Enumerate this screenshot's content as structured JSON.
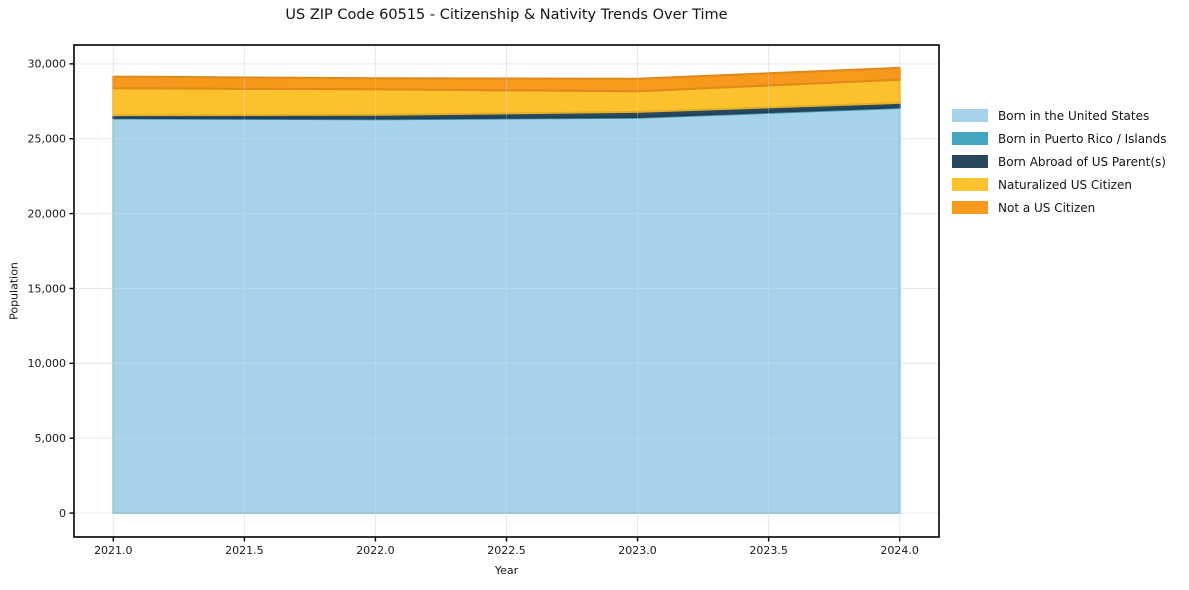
{
  "chart_data": {
    "type": "area",
    "stacked": true,
    "title": "US ZIP Code 60515 - Citizenship & Nativity Trends Over Time",
    "xlabel": "Year",
    "ylabel": "Population",
    "x": [
      2021,
      2022,
      2023,
      2024
    ],
    "series": [
      {
        "name": "Born in the United States",
        "color": "#a6d3ea",
        "values": [
          26350,
          26300,
          26400,
          27050
        ]
      },
      {
        "name": "Born in Puerto Rico / Islands",
        "color": "#45a5c0",
        "values": [
          40,
          50,
          50,
          60
        ]
      },
      {
        "name": "Born Abroad of US Parent(s)",
        "color": "#27485e",
        "values": [
          180,
          250,
          340,
          280
        ]
      },
      {
        "name": "Naturalized US Citizen",
        "color": "#fcc22e",
        "values": [
          1800,
          1700,
          1380,
          1550
        ]
      },
      {
        "name": "Not a US Citizen",
        "color": "#f8981d",
        "values": [
          780,
          740,
          840,
          800
        ]
      }
    ],
    "xticks": [
      2021.0,
      2021.5,
      2022.0,
      2022.5,
      2023.0,
      2023.5,
      2024.0
    ],
    "xtick_labels": [
      "2021.0",
      "2021.5",
      "2022.0",
      "2022.5",
      "2023.0",
      "2023.5",
      "2024.0"
    ],
    "yticks": [
      0,
      5000,
      10000,
      15000,
      20000,
      25000,
      30000
    ],
    "ytick_labels": [
      "0",
      "5,000",
      "10,000",
      "15,000",
      "20,000",
      "25,000",
      "30,000"
    ],
    "xlim": [
      2020.85,
      2024.15
    ],
    "ylim": [
      -1600,
      31260
    ],
    "grid": true,
    "legend_position": "right",
    "colors": {
      "grid": "#e8e8e8",
      "spine": "#000000",
      "text": "#1a1a1a"
    }
  }
}
